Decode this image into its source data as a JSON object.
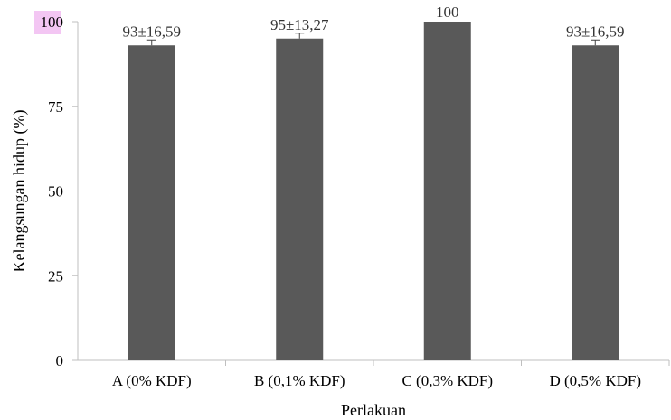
{
  "chart_data": {
    "type": "bar",
    "categories": [
      "A (0% KDF)",
      "B (0,1% KDF)",
      "C (0,3% KDF)",
      "D (0,5% KDF)"
    ],
    "values": [
      93,
      95,
      100,
      93
    ],
    "errors": [
      16.59,
      13.27,
      0,
      16.59
    ],
    "data_labels": [
      "93±16,59",
      "95±13,27",
      "100",
      "93±16,59"
    ],
    "xlabel": "Perlakuan",
    "ylabel": "Kelangsungan hidup (%)",
    "ylim": [
      0,
      100
    ],
    "yticks": [
      "0",
      "25",
      "50",
      "75",
      "100"
    ],
    "grid": false,
    "bar_color": "#595959",
    "highlight_color": "#f3c6f3"
  }
}
